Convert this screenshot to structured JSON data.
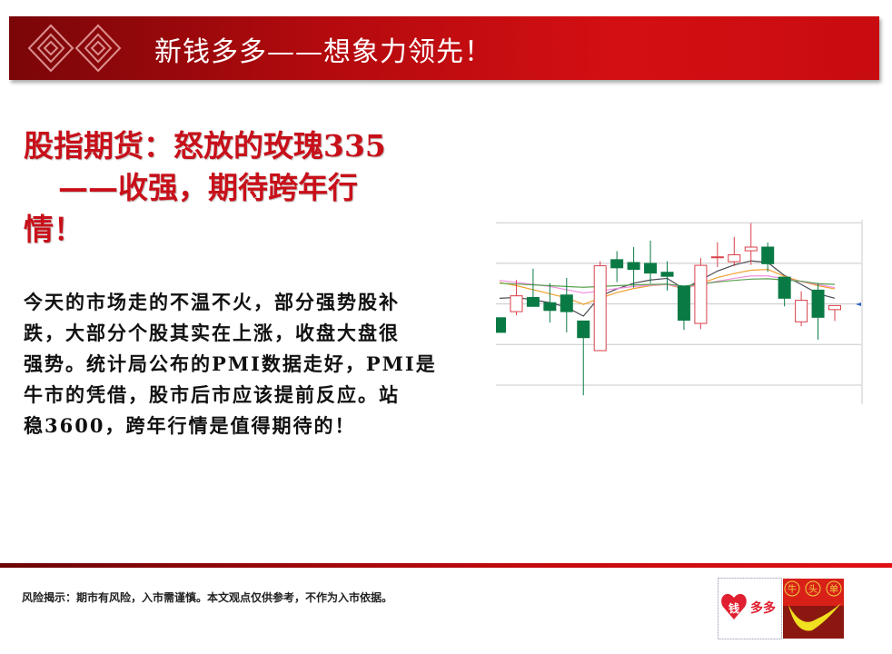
{
  "header": {
    "title": "新钱多多——想象力领先！",
    "accent": "#c8101a"
  },
  "article": {
    "title_lines": [
      "股指期货：怒放的玫瑰335",
      "——收强，期待跨年行",
      "情！"
    ],
    "body_lines": [
      "今天的市场走的不温不火，部分强势股补",
      "跌，大部分个股其实在上涨，收盘大盘很",
      "强势。统计局公布的PMI数据走好，PMI是",
      "牛市的凭借，股市后市应该提前反应。站",
      "稳3600，跨年行情是值得期待的！"
    ]
  },
  "chart_data": {
    "type": "candlestick",
    "ylim": [
      -3,
      41
    ],
    "grid": true,
    "up_color": "#d9404a",
    "down_color": "#0a7a45",
    "candles": [
      {
        "o": 16.6,
        "h": 16.6,
        "l": 13.0,
        "c": 13.0
      },
      {
        "o": 18.1,
        "h": 25.9,
        "l": 17.2,
        "c": 22.0
      },
      {
        "o": 21.6,
        "h": 28.7,
        "l": 19.4,
        "c": 19.4
      },
      {
        "o": 20.3,
        "h": 25.1,
        "l": 15.4,
        "c": 18.4
      },
      {
        "o": 22.2,
        "h": 26.4,
        "l": 13.0,
        "c": 18.1
      },
      {
        "o": 15.8,
        "h": 15.8,
        "l": -2.5,
        "c": 11.7
      },
      {
        "o": 8.5,
        "h": 30.5,
        "l": 8.5,
        "c": 29.4
      },
      {
        "o": 30.9,
        "h": 33.0,
        "l": 25.4,
        "c": 28.9
      },
      {
        "o": 30.2,
        "h": 34.0,
        "l": 24.0,
        "c": 28.5
      },
      {
        "o": 30.0,
        "h": 35.6,
        "l": 25.1,
        "c": 27.6
      },
      {
        "o": 27.8,
        "h": 30.5,
        "l": 23.3,
        "c": 26.8
      },
      {
        "o": 24.4,
        "h": 24.4,
        "l": 13.6,
        "c": 16.0
      },
      {
        "o": 15.2,
        "h": 31.3,
        "l": 13.8,
        "c": 29.5
      },
      {
        "o": 31.6,
        "h": 35.2,
        "l": 29.1,
        "c": 31.6
      },
      {
        "o": 30.4,
        "h": 36.5,
        "l": 29.3,
        "c": 32.1
      },
      {
        "o": 33.1,
        "h": 39.9,
        "l": 29.6,
        "c": 34.0
      },
      {
        "o": 34.0,
        "h": 35.1,
        "l": 27.9,
        "c": 29.9
      },
      {
        "o": 26.6,
        "h": 26.6,
        "l": 19.4,
        "c": 21.4
      },
      {
        "o": 15.6,
        "h": 23.1,
        "l": 14.5,
        "c": 20.9
      },
      {
        "o": 23.4,
        "h": 25.1,
        "l": 11.2,
        "c": 16.7
      },
      {
        "o": 18.6,
        "h": 19.6,
        "l": 15.8,
        "c": 19.6
      }
    ],
    "moving_averages": [
      {
        "color": "#4a4a55",
        "values": [
          21.4,
          21.6,
          21.0,
          20.3,
          19.2,
          17.0,
          21.9,
          23.7,
          25.1,
          25.9,
          26.3,
          23.7,
          25.9,
          28.1,
          29.6,
          30.6,
          30.2,
          27.0,
          24.8,
          22.5,
          21.4
        ]
      },
      {
        "color": "#f0a030",
        "values": [
          25.3,
          24.5,
          23.5,
          22.5,
          21.5,
          19.9,
          21.4,
          22.8,
          23.8,
          24.5,
          24.8,
          23.7,
          25.0,
          26.5,
          27.5,
          28.3,
          28.5,
          26.8,
          25.5,
          24.5,
          23.7
        ]
      },
      {
        "color": "#f090e0",
        "values": [
          25.8,
          25.3,
          24.8,
          24.3,
          23.5,
          22.7,
          23.2,
          23.8,
          24.3,
          24.6,
          24.8,
          24.0,
          24.8,
          25.6,
          26.3,
          26.9,
          26.9,
          26.2,
          25.5,
          24.8,
          24.0
        ]
      },
      {
        "color": "#5aa050",
        "values": [
          25.1,
          24.9,
          24.7,
          24.5,
          24.3,
          24.1,
          24.3,
          24.5,
          24.7,
          24.8,
          24.9,
          24.4,
          24.9,
          25.4,
          25.8,
          26.1,
          26.2,
          25.9,
          25.6,
          25.0,
          24.8
        ]
      }
    ],
    "gridlines": [
      0,
      10,
      20,
      30,
      40
    ]
  },
  "footer": {
    "risk_notice": "风险揭示：期市有风险，入市需谨慎。本文观点仅供参考，不作为入市依据。",
    "logo_left_text": "钱多多",
    "logo_right_text": "牛头单"
  }
}
